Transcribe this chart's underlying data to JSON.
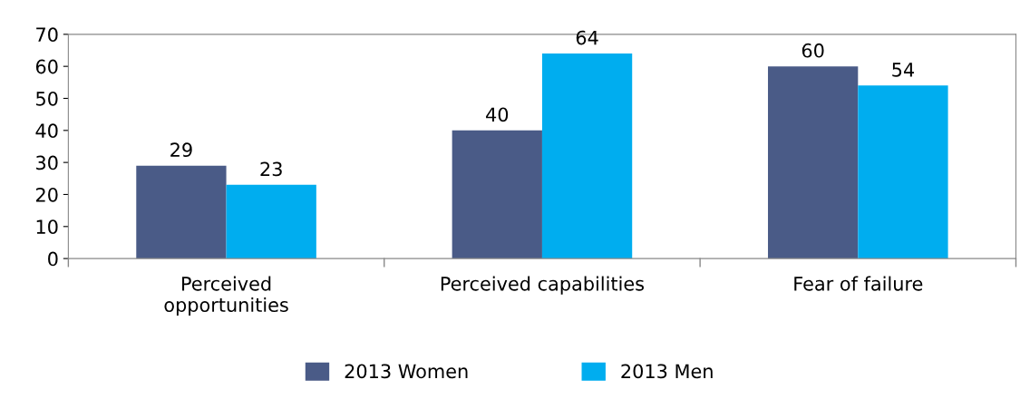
{
  "chart_data": {
    "type": "bar",
    "categories": [
      "Perceived\nopportunities",
      "Perceived capabilities",
      "Fear of failure"
    ],
    "series": [
      {
        "name": "2013 Women",
        "color": "#4a5b87",
        "values": [
          29,
          40,
          60
        ]
      },
      {
        "name": "2013 Men",
        "color": "#00adef",
        "values": [
          23,
          64,
          54
        ]
      }
    ],
    "ylim": [
      0,
      70
    ],
    "yticks": [
      0,
      10,
      20,
      30,
      40,
      50,
      60,
      70
    ],
    "data_labels": true,
    "grid": false,
    "legend": "bottom"
  }
}
